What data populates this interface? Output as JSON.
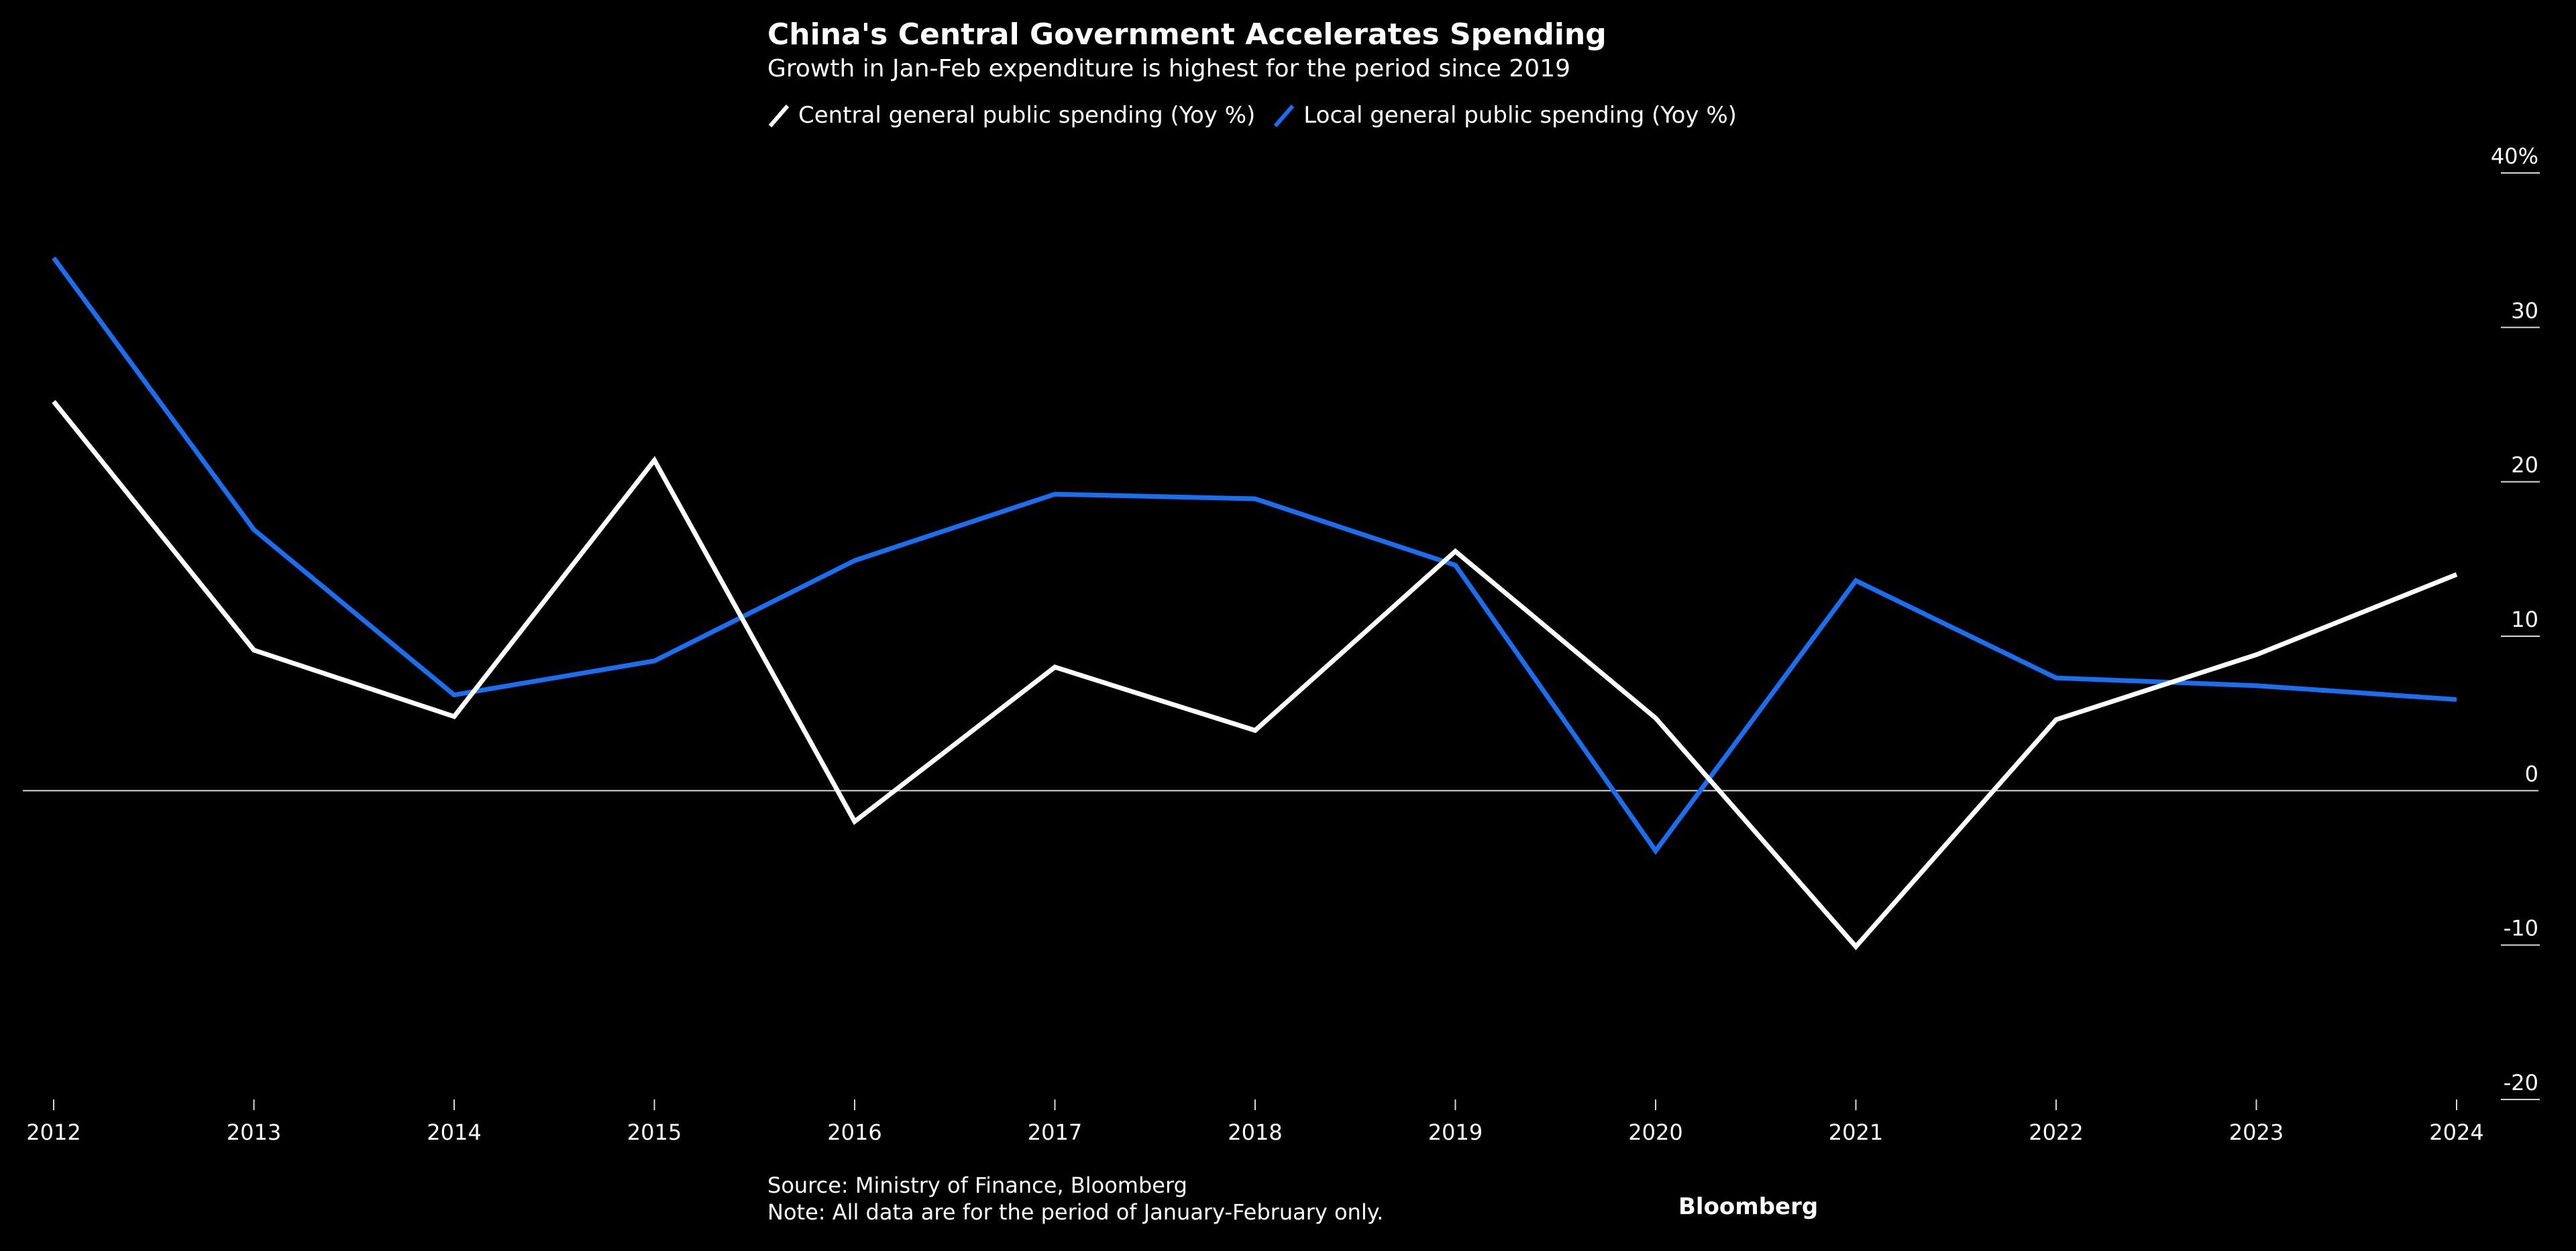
{
  "chart_data": {
    "type": "line",
    "title": "China's Central Government Accelerates Spending",
    "subtitle": "Growth in Jan-Feb expenditure is highest for the period since 2019",
    "categories": [
      "2012",
      "2013",
      "2014",
      "2015",
      "2016",
      "2017",
      "2018",
      "2019",
      "2020",
      "2021",
      "2022",
      "2023",
      "2024"
    ],
    "x": [
      2012,
      2013,
      2014,
      2015,
      2016,
      2017,
      2018,
      2019,
      2020,
      2021,
      2022,
      2023,
      2024
    ],
    "series": [
      {
        "name": "Central general public spending (Yoy %)",
        "color": "#ffffff",
        "values": [
          25.2,
          9.1,
          4.8,
          21.4,
          -2.0,
          8.0,
          3.9,
          15.5,
          4.7,
          -10.1,
          4.6,
          8.8,
          14.0
        ]
      },
      {
        "name": "Local general public spending (Yoy %)",
        "color": "#1a6ff0",
        "values": [
          34.5,
          16.9,
          6.2,
          8.4,
          14.9,
          19.2,
          18.9,
          14.6,
          -3.9,
          13.6,
          7.3,
          6.8,
          5.9
        ]
      }
    ],
    "y_ticks": [
      -20,
      -10,
      0,
      10,
      20,
      30,
      40
    ],
    "y_tick_labels": [
      "-20",
      "-10",
      "0",
      "10",
      "20",
      "30",
      "40%"
    ],
    "ylim": [
      -20,
      40
    ],
    "xlabel": "",
    "ylabel": ""
  },
  "footer": {
    "source": "Source: Ministry of Finance, Bloomberg",
    "note": "Note: All data are for the period of January-February only.",
    "brand": "Bloomberg"
  }
}
